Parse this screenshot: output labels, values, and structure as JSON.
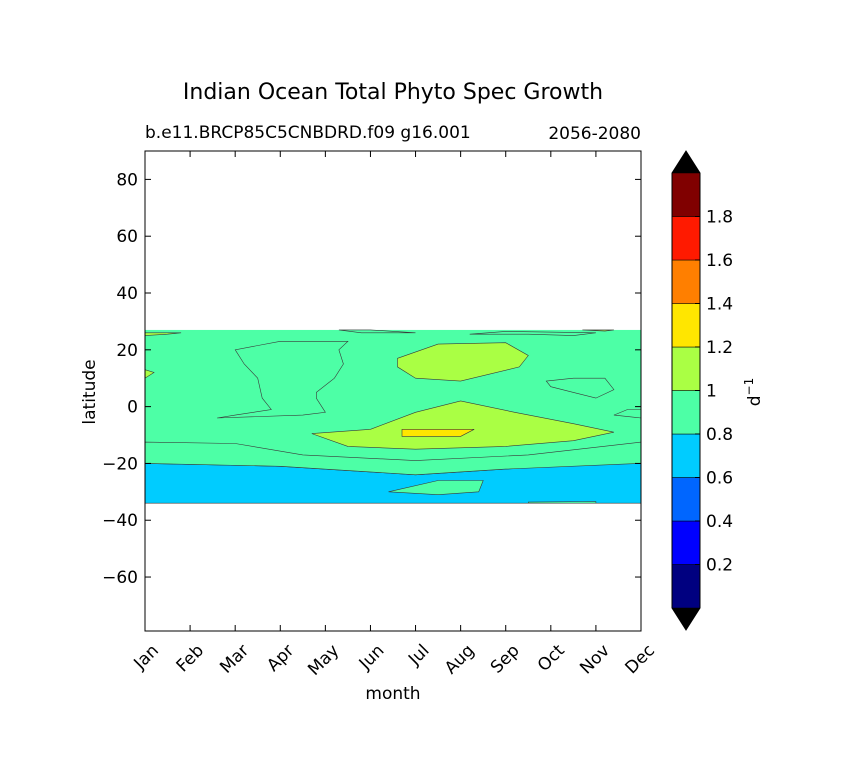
{
  "chart_data": {
    "type": "heatmap",
    "title": "Indian Ocean Total Phyto Spec Growth",
    "subtitle_left": "b.e11.BRCP85C5CNBDRD.f09 g16.001",
    "subtitle_right": "2056-2080",
    "xlabel": "month",
    "ylabel": "latitude",
    "x_categories": [
      "Jan",
      "Feb",
      "Mar",
      "Apr",
      "May",
      "Jun",
      "Jul",
      "Aug",
      "Sep",
      "Oct",
      "Nov",
      "Dec"
    ],
    "y_ticks": [
      80,
      60,
      40,
      20,
      0,
      -20,
      -40,
      -60
    ],
    "y_tick_labels": [
      "80",
      "60",
      "40",
      "20",
      "0",
      "−20",
      "−40",
      "−60"
    ],
    "ylim": [
      -79,
      90
    ],
    "data_lat_range": [
      -34,
      27
    ],
    "colorbar": {
      "label": "d",
      "label_exponent": "−1",
      "levels": [
        0,
        0.2,
        0.4,
        0.6,
        0.8,
        1.0,
        1.2,
        1.4,
        1.6,
        1.8,
        2.0
      ],
      "tick_values": [
        0.2,
        0.4,
        0.6,
        0.8,
        1.0,
        1.2,
        1.4,
        1.6,
        1.8
      ],
      "tick_labels": [
        "0.2",
        "0.4",
        "0.6",
        "0.8",
        "1",
        "1.2",
        "1.4",
        "1.6",
        "1.8"
      ],
      "colors": [
        "#000080",
        "#0000ff",
        "#0066ff",
        "#00ccff",
        "#4dffa6",
        "#aaff44",
        "#ffe600",
        "#ff7f00",
        "#ff1a00",
        "#800000"
      ],
      "extend": "both"
    },
    "regions": [
      {
        "level": 0.6,
        "points": [
          [
            0,
            -20
          ],
          [
            3,
            -21
          ],
          [
            6,
            -24
          ],
          [
            8,
            -22
          ],
          [
            11,
            -19
          ],
          [
            11,
            -34
          ],
          [
            0,
            -34
          ]
        ]
      },
      {
        "level": 0.8,
        "points": [
          [
            5.4,
            -30
          ],
          [
            6.5,
            -26
          ],
          [
            7.5,
            -26
          ],
          [
            7.4,
            -30
          ],
          [
            6.5,
            -31
          ]
        ]
      },
      {
        "level": 0.8,
        "points": [
          [
            8.5,
            -33.6
          ],
          [
            10,
            -33.4
          ],
          [
            10,
            -34
          ],
          [
            8.5,
            -34
          ]
        ]
      },
      {
        "level": 0.8,
        "points": [
          [
            0,
            -12.5
          ],
          [
            2,
            -13
          ],
          [
            3.5,
            -17
          ],
          [
            6,
            -19
          ],
          [
            8.5,
            -17
          ],
          [
            11,
            -12.5
          ],
          [
            11,
            -20
          ],
          [
            8,
            -22
          ],
          [
            6,
            -24
          ],
          [
            3,
            -21
          ],
          [
            0,
            -20
          ]
        ]
      },
      {
        "level": 0.8,
        "points": [
          [
            1.6,
            -4
          ],
          [
            3.5,
            -3
          ],
          [
            4,
            -2
          ],
          [
            3.8,
            3
          ],
          [
            3.8,
            5
          ],
          [
            4.2,
            10
          ],
          [
            4.4,
            15
          ],
          [
            4.3,
            20
          ],
          [
            4.5,
            23
          ],
          [
            3,
            23
          ],
          [
            2,
            20
          ],
          [
            2.2,
            15
          ],
          [
            2.5,
            10
          ],
          [
            2.6,
            3
          ],
          [
            2.8,
            -1
          ],
          [
            2,
            -3
          ]
        ]
      },
      {
        "level": 0.8,
        "points": [
          [
            4.3,
            27
          ],
          [
            4.8,
            26
          ],
          [
            6,
            26
          ],
          [
            5,
            27
          ]
        ]
      },
      {
        "level": 0.8,
        "points": [
          [
            7.2,
            25.5
          ],
          [
            8.5,
            25.5
          ],
          [
            9.5,
            25
          ],
          [
            10,
            26
          ],
          [
            8,
            26.5
          ]
        ]
      },
      {
        "level": 0.8,
        "points": [
          [
            8.9,
            9
          ],
          [
            9.5,
            10
          ],
          [
            10.2,
            10
          ],
          [
            10.4,
            6
          ],
          [
            10,
            3
          ],
          [
            9.5,
            5
          ],
          [
            9,
            7
          ]
        ]
      },
      {
        "level": 0.8,
        "points": [
          [
            10.4,
            -3
          ],
          [
            10.7,
            -1
          ],
          [
            11,
            -1
          ],
          [
            11,
            -4
          ]
        ]
      },
      {
        "level": 1.0,
        "points": [
          [
            3.7,
            -9.5
          ],
          [
            5,
            -8
          ],
          [
            6,
            -2
          ],
          [
            7,
            2
          ],
          [
            8.2,
            -2
          ],
          [
            9.5,
            -6
          ],
          [
            10.4,
            -9
          ],
          [
            9.5,
            -12
          ],
          [
            8,
            -14
          ],
          [
            6,
            -15
          ],
          [
            4.5,
            -14
          ]
        ]
      },
      {
        "level": 1.0,
        "points": [
          [
            5.6,
            17
          ],
          [
            6.5,
            22
          ],
          [
            8,
            22.5
          ],
          [
            8.5,
            18
          ],
          [
            8.3,
            14
          ],
          [
            7,
            9
          ],
          [
            6,
            10
          ],
          [
            5.6,
            14
          ]
        ]
      },
      {
        "level": 1.0,
        "points": [
          [
            0,
            26
          ],
          [
            0.8,
            26
          ],
          [
            0.5,
            25.5
          ],
          [
            0,
            25
          ]
        ]
      },
      {
        "level": 1.0,
        "points": [
          [
            0,
            13
          ],
          [
            0.2,
            12
          ],
          [
            0,
            10
          ]
        ]
      },
      {
        "level": 1.0,
        "points": [
          [
            9.7,
            27
          ],
          [
            10.2,
            26.6
          ],
          [
            10.4,
            27
          ]
        ]
      },
      {
        "level": 1.2,
        "points": [
          [
            5.7,
            -8
          ],
          [
            7.3,
            -8
          ],
          [
            7,
            -10.5
          ],
          [
            5.7,
            -10.5
          ]
        ]
      }
    ]
  }
}
